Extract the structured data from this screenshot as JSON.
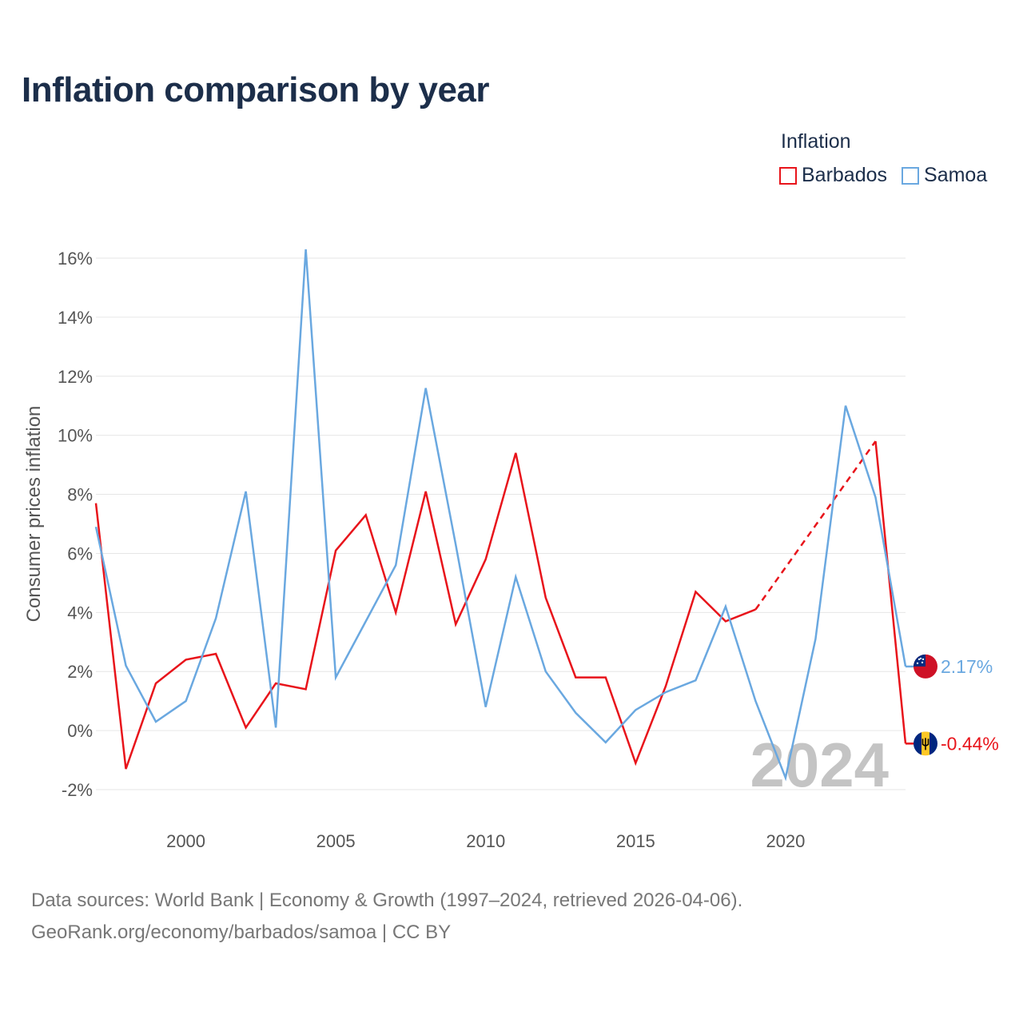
{
  "title": "Inflation comparison by year",
  "legend": {
    "title": "Inflation",
    "items": [
      {
        "name": "Barbados",
        "color": "#e8141b"
      },
      {
        "name": "Samoa",
        "color": "#6aa8e0"
      }
    ]
  },
  "watermark": "2024",
  "source": {
    "line1": "Data sources: World Bank | Economy & Growth (1997–2024, retrieved 2026-04-06).",
    "line2": "GeoRank.org/economy/barbados/samoa | CC BY"
  },
  "chart_data": {
    "type": "line",
    "title": "Inflation comparison by year",
    "xlabel": "",
    "ylabel": "Consumer prices inflation",
    "xlim": [
      1997,
      2024
    ],
    "ylim": [
      -2,
      16
    ],
    "x_ticks": [
      2000,
      2005,
      2010,
      2015,
      2020
    ],
    "y_ticks": [
      {
        "value": 16,
        "label": "16%"
      },
      {
        "value": 14,
        "label": "14%"
      },
      {
        "value": 12,
        "label": "12%"
      },
      {
        "value": 10,
        "label": "10%"
      },
      {
        "value": 8,
        "label": "8%"
      },
      {
        "value": 6,
        "label": "6%"
      },
      {
        "value": 4,
        "label": "4%"
      },
      {
        "value": 2,
        "label": "2%"
      },
      {
        "value": 0,
        "label": "0%"
      },
      {
        "value": -2,
        "label": "-2%"
      }
    ],
    "series": [
      {
        "name": "Barbados",
        "color": "#e8141b",
        "flag": "barbados-flag-icon",
        "end_label": "-0.44%",
        "gap_dashed": [
          2019,
          2023
        ],
        "points": [
          [
            1997,
            7.7
          ],
          [
            1998,
            -1.3
          ],
          [
            1999,
            1.6
          ],
          [
            2000,
            2.4
          ],
          [
            2001,
            2.6
          ],
          [
            2002,
            0.1
          ],
          [
            2003,
            1.6
          ],
          [
            2004,
            1.4
          ],
          [
            2005,
            6.1
          ],
          [
            2006,
            7.3
          ],
          [
            2007,
            4.0
          ],
          [
            2008,
            8.1
          ],
          [
            2009,
            3.6
          ],
          [
            2010,
            5.8
          ],
          [
            2011,
            9.4
          ],
          [
            2012,
            4.5
          ],
          [
            2013,
            1.8
          ],
          [
            2014,
            1.8
          ],
          [
            2015,
            -1.1
          ],
          [
            2016,
            1.5
          ],
          [
            2017,
            4.7
          ],
          [
            2018,
            3.7
          ],
          [
            2019,
            4.1
          ],
          [
            2023,
            9.8
          ],
          [
            2024,
            -0.44
          ]
        ]
      },
      {
        "name": "Samoa",
        "color": "#6aa8e0",
        "flag": "samoa-flag-icon",
        "end_label": "2.17%",
        "points": [
          [
            1997,
            6.9
          ],
          [
            1998,
            2.2
          ],
          [
            1999,
            0.3
          ],
          [
            2000,
            1.0
          ],
          [
            2001,
            3.8
          ],
          [
            2002,
            8.1
          ],
          [
            2003,
            0.1
          ],
          [
            2004,
            16.3
          ],
          [
            2005,
            1.8
          ],
          [
            2006,
            3.7
          ],
          [
            2007,
            5.6
          ],
          [
            2008,
            11.6
          ],
          [
            2009,
            6.3
          ],
          [
            2010,
            0.8
          ],
          [
            2011,
            5.2
          ],
          [
            2012,
            2.0
          ],
          [
            2013,
            0.6
          ],
          [
            2014,
            -0.4
          ],
          [
            2015,
            0.7
          ],
          [
            2016,
            1.3
          ],
          [
            2017,
            1.7
          ],
          [
            2018,
            4.2
          ],
          [
            2019,
            1.0
          ],
          [
            2020,
            -1.6
          ],
          [
            2021,
            3.1
          ],
          [
            2022,
            11.0
          ],
          [
            2023,
            7.9
          ],
          [
            2024,
            2.17
          ]
        ]
      }
    ]
  }
}
